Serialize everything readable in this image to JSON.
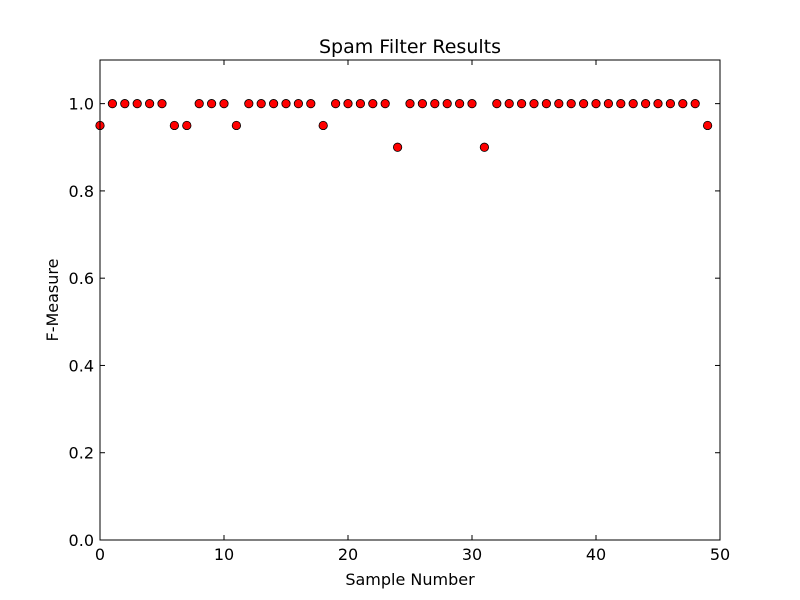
{
  "chart_data": {
    "type": "scatter",
    "title": "Spam Filter Results",
    "xlabel": "Sample Number",
    "ylabel": "F-Measure",
    "xlim": [
      0,
      50
    ],
    "ylim": [
      0.0,
      1.1
    ],
    "xticks": [
      0,
      10,
      20,
      30,
      40,
      50
    ],
    "xtick_labels": [
      "0",
      "10",
      "20",
      "30",
      "40",
      "50"
    ],
    "yticks": [
      0.0,
      0.2,
      0.4,
      0.6,
      0.8,
      1.0
    ],
    "ytick_labels": [
      "0.0",
      "0.2",
      "0.4",
      "0.6",
      "0.8",
      "1.0"
    ],
    "grid": false,
    "legend": "none",
    "marker_color": "#ff0000",
    "marker_edge_color": "#000000",
    "x": [
      0,
      1,
      2,
      3,
      4,
      5,
      6,
      7,
      8,
      9,
      10,
      11,
      12,
      13,
      14,
      15,
      16,
      17,
      18,
      19,
      20,
      21,
      22,
      23,
      24,
      25,
      26,
      27,
      28,
      29,
      30,
      31,
      32,
      33,
      34,
      35,
      36,
      37,
      38,
      39,
      40,
      41,
      42,
      43,
      44,
      45,
      46,
      47,
      48,
      49
    ],
    "y": [
      0.95,
      1.0,
      1.0,
      1.0,
      1.0,
      1.0,
      0.95,
      0.95,
      1.0,
      1.0,
      1.0,
      0.95,
      1.0,
      1.0,
      1.0,
      1.0,
      1.0,
      1.0,
      0.95,
      1.0,
      1.0,
      1.0,
      1.0,
      1.0,
      0.9,
      1.0,
      1.0,
      1.0,
      1.0,
      1.0,
      1.0,
      0.9,
      1.0,
      1.0,
      1.0,
      1.0,
      1.0,
      1.0,
      1.0,
      1.0,
      1.0,
      1.0,
      1.0,
      1.0,
      1.0,
      1.0,
      1.0,
      1.0,
      1.0,
      0.95
    ]
  }
}
